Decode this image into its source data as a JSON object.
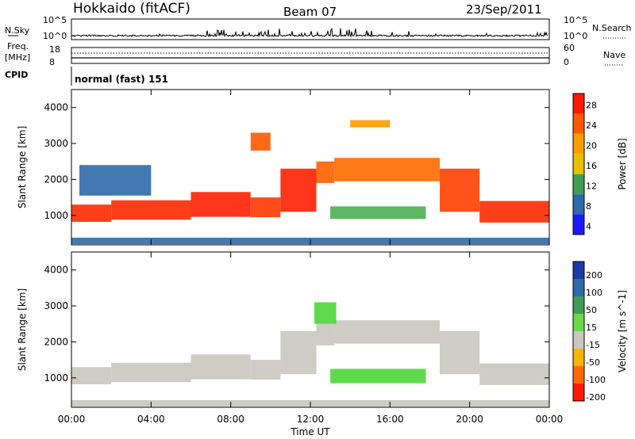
{
  "header": {
    "station": "Hokkaido (fitACF)",
    "beam": "Beam 07",
    "date": "23/Sep/2011"
  },
  "summary_panels": {
    "nsky_label": "N.Sky",
    "nsky_ticks": [
      "10^5",
      "10^0"
    ],
    "nsearch_label": "N.Search",
    "nsearch_ticks": [
      "10^5",
      "10^0"
    ],
    "freq_label_line1": "Freq.",
    "freq_label_line2": "[MHz]",
    "freq_ticks": [
      "18",
      "8"
    ],
    "nave_label": "Nave",
    "nave_ticks": [
      "60",
      "0"
    ],
    "cpid_label": "CPID",
    "cpid_value": "normal (fast) 151"
  },
  "chart_data": [
    {
      "type": "heatmap",
      "name": "power-panel",
      "ylabel": "Slant Range [km]",
      "ylim": [
        180,
        4500
      ],
      "y_ticks": [
        "4000",
        "3000",
        "2000",
        "1000"
      ],
      "x_ticks": [
        "00:00",
        "04:00",
        "08:00",
        "12:00",
        "16:00",
        "20:00",
        "00:00"
      ],
      "xlim_hours": [
        0,
        24
      ],
      "colorbar": {
        "label": "Power [dB]",
        "levels": [
          {
            "label": "28",
            "color": "#ff1a00"
          },
          {
            "label": "24",
            "color": "#ff5a00"
          },
          {
            "label": "20",
            "color": "#ff9c00"
          },
          {
            "label": "16",
            "color": "#e8c000"
          },
          {
            "label": "12",
            "color": "#3f9e56"
          },
          {
            "label": "8",
            "color": "#2f6aa8"
          },
          {
            "label": "4",
            "color": "#1a1aff"
          }
        ]
      },
      "bands": [
        {
          "t": [
            0.0,
            2.0
          ],
          "r": [
            820,
            1300
          ],
          "color": "#ff2a00"
        },
        {
          "t": [
            2.0,
            6.0
          ],
          "r": [
            880,
            1420
          ],
          "color": "#ff2a00"
        },
        {
          "t": [
            6.0,
            9.0
          ],
          "r": [
            960,
            1650
          ],
          "color": "#ff2000"
        },
        {
          "t": [
            9.0,
            10.5
          ],
          "r": [
            950,
            1500
          ],
          "color": "#ff3a00"
        },
        {
          "t": [
            10.5,
            12.3
          ],
          "r": [
            1100,
            2300
          ],
          "color": "#ff2000"
        },
        {
          "t": [
            12.3,
            13.2
          ],
          "r": [
            1900,
            2500
          ],
          "color": "#ff6000"
        },
        {
          "t": [
            13.2,
            18.5
          ],
          "r": [
            1950,
            2600
          ],
          "color": "#ff6a00"
        },
        {
          "t": [
            18.5,
            20.5
          ],
          "r": [
            1100,
            2300
          ],
          "color": "#ff4000"
        },
        {
          "t": [
            20.5,
            24.0
          ],
          "r": [
            800,
            1400
          ],
          "color": "#ff2a00"
        },
        {
          "t": [
            0.4,
            4.0
          ],
          "r": [
            1550,
            2400
          ],
          "color": "#2f6aa8"
        },
        {
          "t": [
            13.0,
            17.8
          ],
          "r": [
            900,
            1250
          ],
          "color": "#4caf50"
        },
        {
          "t": [
            14.0,
            16.0
          ],
          "r": [
            3450,
            3650
          ],
          "color": "#ff9c00"
        },
        {
          "t": [
            9.0,
            10.0
          ],
          "r": [
            2800,
            3300
          ],
          "color": "#ff5a00"
        },
        {
          "t": [
            0.0,
            24.0
          ],
          "r": [
            200,
            380
          ],
          "color": "#2f6aa8"
        }
      ]
    },
    {
      "type": "heatmap",
      "name": "velocity-panel",
      "ylabel": "Slant Range [km]",
      "xlabel": "Time UT",
      "ylim": [
        180,
        4500
      ],
      "y_ticks": [
        "4000",
        "3000",
        "2000",
        "1000"
      ],
      "x_ticks": [
        "00:00",
        "04:00",
        "08:00",
        "12:00",
        "16:00",
        "20:00",
        "00:00"
      ],
      "xlim_hours": [
        0,
        24
      ],
      "colorbar": {
        "label": "Velocity [m s^-1]",
        "levels": [
          {
            "label": "200",
            "color": "#1a3aa8"
          },
          {
            "label": "100",
            "color": "#2f6aa8"
          },
          {
            "label": "50",
            "color": "#3f9e56"
          },
          {
            "label": "15",
            "color": "#6ad84a"
          },
          {
            "label": "-15",
            "color": "#c8c8c0"
          },
          {
            "label": "-50",
            "color": "#ffb400"
          },
          {
            "label": "-100",
            "color": "#ff6a00"
          },
          {
            "label": "-200",
            "color": "#ff1a00"
          }
        ]
      },
      "bands": [
        {
          "t": [
            0.0,
            2.0
          ],
          "r": [
            820,
            1300
          ],
          "color": "#c8c8c0"
        },
        {
          "t": [
            2.0,
            6.0
          ],
          "r": [
            880,
            1420
          ],
          "color": "#c8c8c0"
        },
        {
          "t": [
            6.0,
            9.0
          ],
          "r": [
            960,
            1650
          ],
          "color": "#c8c8c0"
        },
        {
          "t": [
            9.0,
            10.5
          ],
          "r": [
            950,
            1500
          ],
          "color": "#c8c8c0"
        },
        {
          "t": [
            10.5,
            12.3
          ],
          "r": [
            1100,
            2300
          ],
          "color": "#c8c8c0"
        },
        {
          "t": [
            12.3,
            13.2
          ],
          "r": [
            1900,
            2500
          ],
          "color": "#c8c8c0"
        },
        {
          "t": [
            13.2,
            18.5
          ],
          "r": [
            1950,
            2600
          ],
          "color": "#c8c8c0"
        },
        {
          "t": [
            18.5,
            20.5
          ],
          "r": [
            1100,
            2300
          ],
          "color": "#c8c8c0"
        },
        {
          "t": [
            20.5,
            24.0
          ],
          "r": [
            800,
            1400
          ],
          "color": "#c8c8c0"
        },
        {
          "t": [
            12.2,
            13.3
          ],
          "r": [
            2500,
            3100
          ],
          "color": "#4fd63a"
        },
        {
          "t": [
            13.0,
            17.8
          ],
          "r": [
            850,
            1250
          ],
          "color": "#4fd63a"
        },
        {
          "t": [
            0.0,
            24.0
          ],
          "r": [
            200,
            380
          ],
          "color": "#c8c8c0"
        }
      ]
    }
  ]
}
